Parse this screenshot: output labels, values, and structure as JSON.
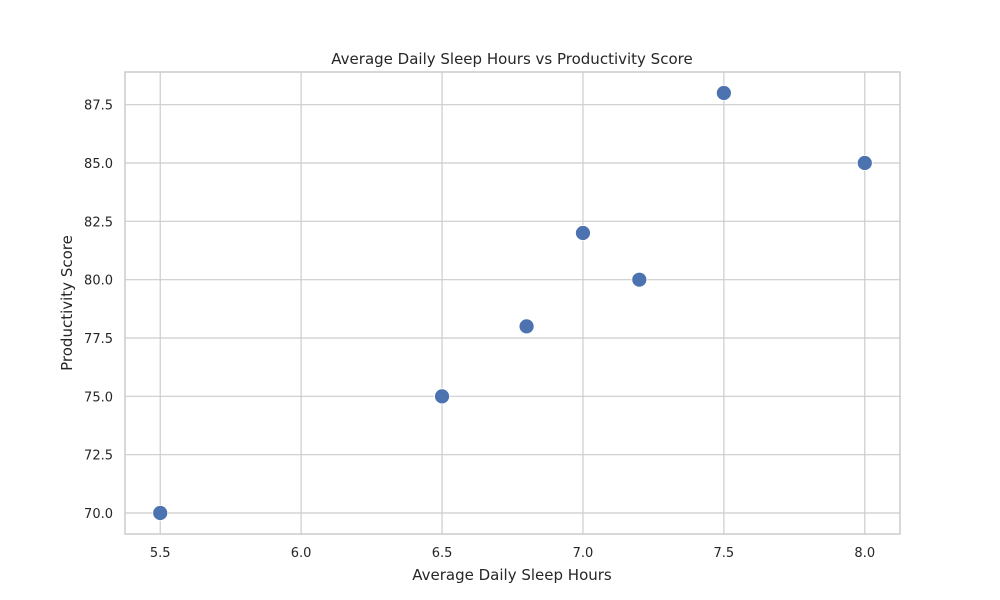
{
  "chart_data": {
    "type": "scatter",
    "title": "Average Daily Sleep Hours vs Productivity Score",
    "xlabel": "Average Daily Sleep Hours",
    "ylabel": "Productivity Score",
    "xlim": [
      5.375,
      8.125
    ],
    "ylim": [
      69.1,
      88.9
    ],
    "xticks": [
      5.5,
      6.0,
      6.5,
      7.0,
      7.5,
      8.0
    ],
    "xtick_labels": [
      "5.5",
      "6.0",
      "6.5",
      "7.0",
      "7.5",
      "8.0"
    ],
    "yticks": [
      70.0,
      72.5,
      75.0,
      77.5,
      80.0,
      82.5,
      85.0,
      87.5
    ],
    "ytick_labels": [
      "70.0",
      "72.5",
      "75.0",
      "77.5",
      "80.0",
      "82.5",
      "85.0",
      "87.5"
    ],
    "grid": true,
    "marker_color": "#4c72b0",
    "points": [
      {
        "x": 5.5,
        "y": 70
      },
      {
        "x": 6.5,
        "y": 75
      },
      {
        "x": 6.8,
        "y": 78
      },
      {
        "x": 7.0,
        "y": 82
      },
      {
        "x": 7.2,
        "y": 80
      },
      {
        "x": 7.5,
        "y": 88
      },
      {
        "x": 8.0,
        "y": 85
      }
    ]
  }
}
